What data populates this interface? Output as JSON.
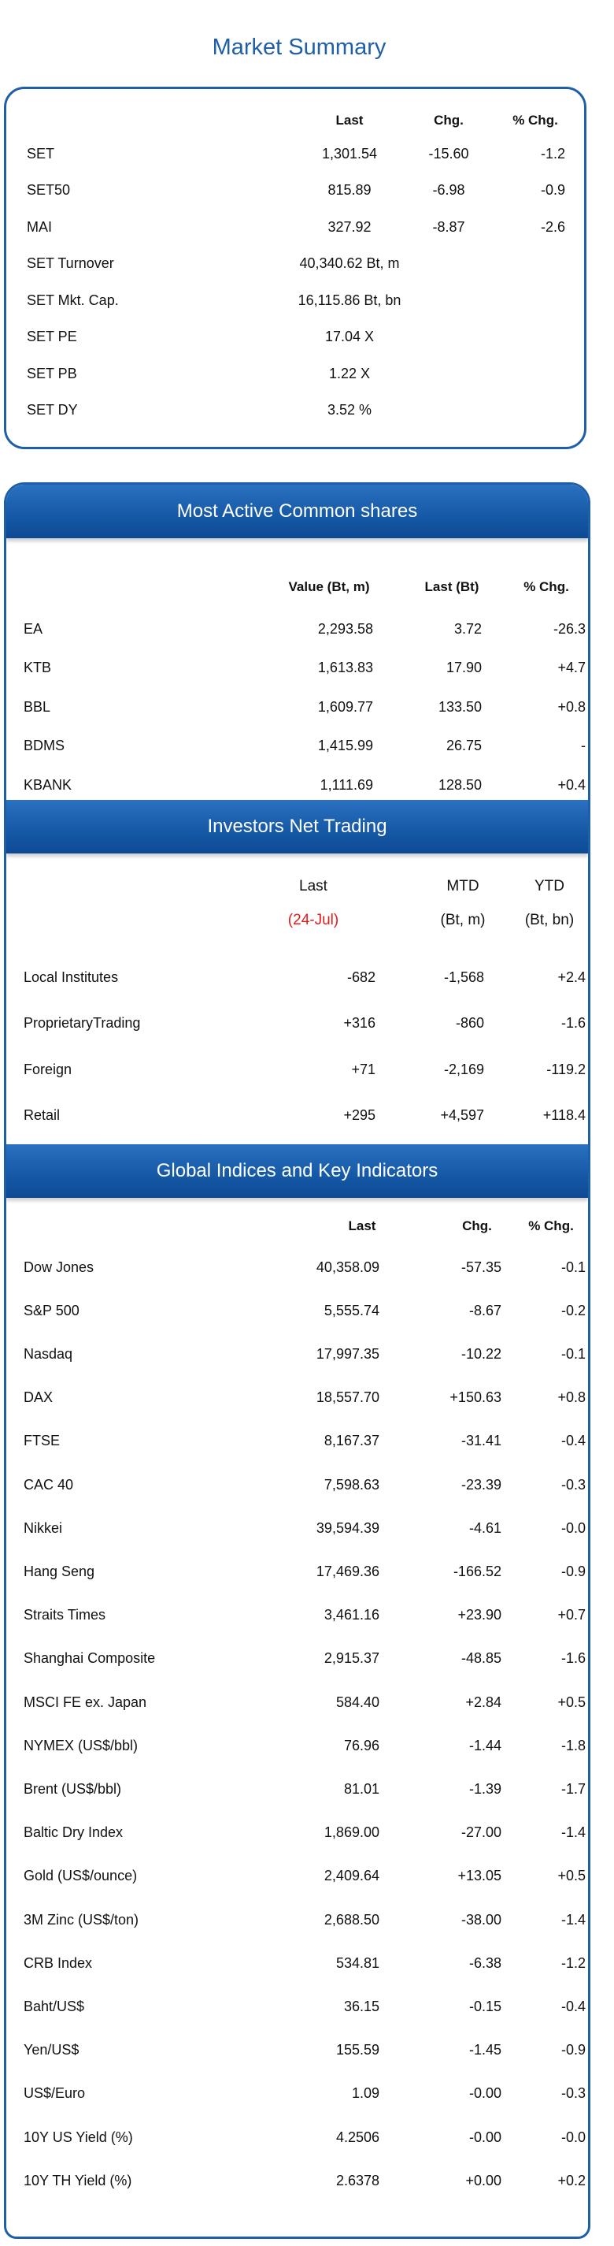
{
  "title": "Market Summary",
  "market_summary": {
    "headers": [
      "Last",
      "Chg.",
      "% Chg."
    ],
    "rows": [
      {
        "name": "SET",
        "last": "1,301.54",
        "chg": "-15.60",
        "pct": "-1.2"
      },
      {
        "name": "SET50",
        "last": "815.89",
        "chg": "-6.98",
        "pct": "-0.9"
      },
      {
        "name": "MAI",
        "last": "327.92",
        "chg": "-8.87",
        "pct": "-2.6"
      },
      {
        "name": "SET  Turnover",
        "last": "40,340.62 Bt, m",
        "chg": "",
        "pct": ""
      },
      {
        "name": "SET  Mkt. Cap.",
        "last": "16,115.86 Bt, bn",
        "chg": "",
        "pct": ""
      },
      {
        "name": "SET  PE",
        "last": "17.04 X",
        "chg": "",
        "pct": ""
      },
      {
        "name": "SET  PB",
        "last": "1.22 X",
        "chg": "",
        "pct": ""
      },
      {
        "name": "SET  DY",
        "last": "3.52 %",
        "chg": "",
        "pct": ""
      }
    ]
  },
  "most_active": {
    "title": "Most Active Common shares",
    "headers": [
      "Value (Bt, m)",
      "Last (Bt)",
      "% Chg."
    ],
    "rows": [
      {
        "name": "EA",
        "value": "2,293.58",
        "last": "3.72",
        "pct": "-26.3"
      },
      {
        "name": "KTB",
        "value": "1,613.83",
        "last": "17.90",
        "pct": "+4.7"
      },
      {
        "name": "BBL",
        "value": "1,609.77",
        "last": "133.50",
        "pct": "+0.8"
      },
      {
        "name": "BDMS",
        "value": "1,415.99",
        "last": "26.75",
        "pct": "-"
      },
      {
        "name": "KBANK",
        "value": "1,111.69",
        "last": "128.50",
        "pct": "+0.4"
      }
    ]
  },
  "investors": {
    "title": "Investors Net Trading",
    "headers": [
      "Last",
      "MTD",
      "YTD"
    ],
    "subheaders": [
      "(24-Jul)",
      "(Bt, m)",
      "(Bt, bn)"
    ],
    "highlight_color": "#e31b1b",
    "rows": [
      {
        "name": "Local Institutes",
        "last": "-682",
        "mtd": "-1,568",
        "ytd": "+2.4"
      },
      {
        "name": "ProprietaryTrading",
        "last": "+316",
        "mtd": "-860",
        "ytd": "-1.6"
      },
      {
        "name": "Foreign",
        "last": "+71",
        "mtd": "-2,169",
        "ytd": "-119.2"
      },
      {
        "name": "Retail",
        "last": "+295",
        "mtd": "+4,597",
        "ytd": "+118.4"
      }
    ]
  },
  "global": {
    "title": "Global Indices and Key Indicators",
    "headers": [
      "Last",
      "Chg.",
      "% Chg."
    ],
    "rows": [
      {
        "name": "Dow Jones",
        "last": "40,358.09",
        "chg": "-57.35",
        "pct": "-0.1"
      },
      {
        "name": "S&P 500",
        "last": "5,555.74",
        "chg": "-8.67",
        "pct": "-0.2"
      },
      {
        "name": "Nasdaq",
        "last": "17,997.35",
        "chg": "-10.22",
        "pct": "-0.1"
      },
      {
        "name": "DAX",
        "last": "18,557.70",
        "chg": "+150.63",
        "pct": "+0.8"
      },
      {
        "name": "FTSE",
        "last": "8,167.37",
        "chg": "-31.41",
        "pct": "-0.4"
      },
      {
        "name": "CAC 40",
        "last": "7,598.63",
        "chg": "-23.39",
        "pct": "-0.3"
      },
      {
        "name": "Nikkei",
        "last": "39,594.39",
        "chg": "-4.61",
        "pct": "-0.0"
      },
      {
        "name": "Hang Seng",
        "last": "17,469.36",
        "chg": "-166.52",
        "pct": "-0.9"
      },
      {
        "name": "Straits Times",
        "last": "3,461.16",
        "chg": "+23.90",
        "pct": "+0.7"
      },
      {
        "name": "Shanghai Composite",
        "last": "2,915.37",
        "chg": "-48.85",
        "pct": "-1.6"
      },
      {
        "name": "MSCI FE ex. Japan",
        "last": "584.40",
        "chg": "+2.84",
        "pct": "+0.5"
      },
      {
        "name": "NYMEX (US$/bbl)",
        "last": "76.96",
        "chg": "-1.44",
        "pct": "-1.8"
      },
      {
        "name": "Brent (US$/bbl)",
        "last": "81.01",
        "chg": "-1.39",
        "pct": "-1.7"
      },
      {
        "name": "Baltic Dry Index",
        "last": "1,869.00",
        "chg": "-27.00",
        "pct": "-1.4"
      },
      {
        "name": "Gold (US$/ounce)",
        "last": "2,409.64",
        "chg": "+13.05",
        "pct": "+0.5"
      },
      {
        "name": "3M Zinc (US$/ton)",
        "last": "2,688.50",
        "chg": "-38.00",
        "pct": "-1.4"
      },
      {
        "name": "CRB Index",
        "last": "534.81",
        "chg": "-6.38",
        "pct": "-1.2"
      },
      {
        "name": "Baht/US$",
        "last": "36.15",
        "chg": "-0.15",
        "pct": "-0.4"
      },
      {
        "name": "Yen/US$",
        "last": "155.59",
        "chg": "-1.45",
        "pct": "-0.9"
      },
      {
        "name": "US$/Euro",
        "last": "1.09",
        "chg": "-0.00",
        "pct": "-0.3"
      },
      {
        "name": "10Y US Yield (%)",
        "last": "4.2506",
        "chg": "-0.00",
        "pct": "-0.0"
      },
      {
        "name": "10Y TH Yield (%)",
        "last": "2.6378",
        "chg": "+0.00",
        "pct": "+0.2"
      }
    ]
  }
}
